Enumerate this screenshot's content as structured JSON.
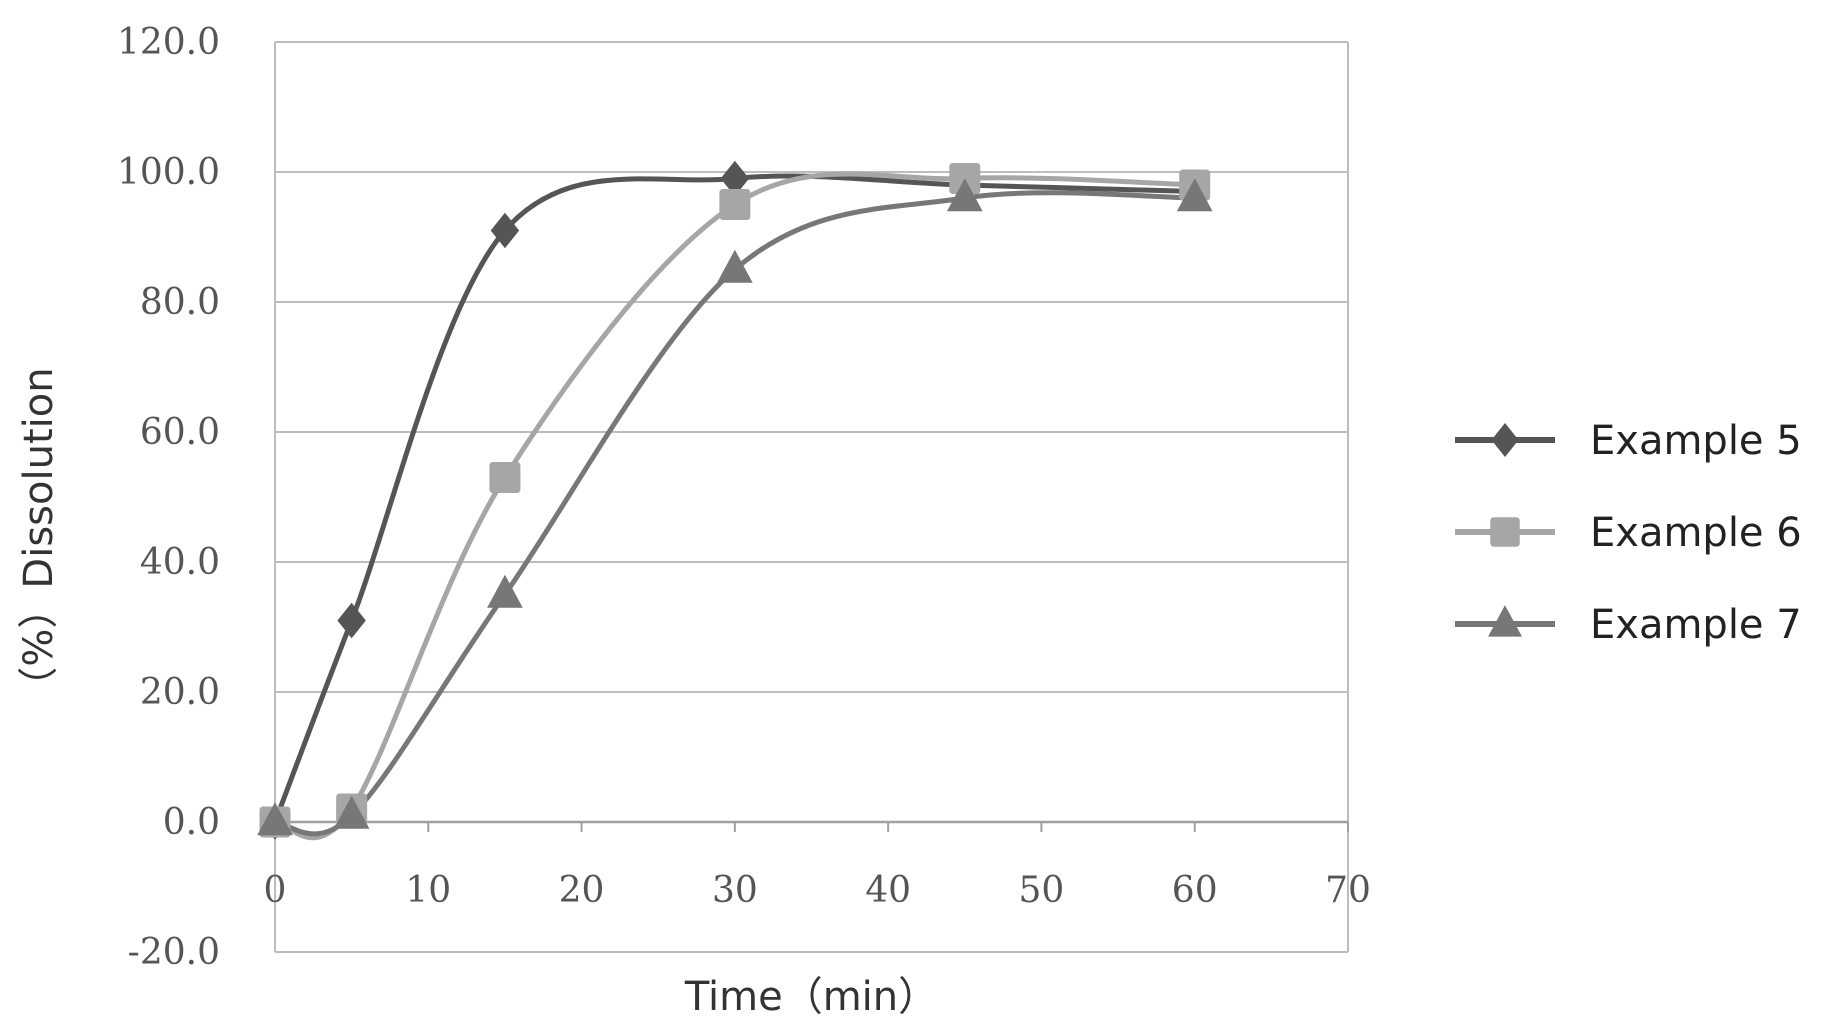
{
  "chart_data": {
    "type": "line",
    "xlabel": "Time（min）",
    "ylabel": "（%）Dissolution",
    "xlim": [
      0,
      70
    ],
    "ylim": [
      -20,
      120
    ],
    "xticks": [
      0,
      10,
      20,
      30,
      40,
      50,
      60,
      70
    ],
    "yticks": [
      -20,
      0,
      20,
      40,
      60,
      80,
      100,
      120
    ],
    "ytick_labels": [
      "-20.0",
      "0.0",
      "20.0",
      "40.0",
      "60.0",
      "80.0",
      "100.0",
      "120.0"
    ],
    "xtick_labels": [
      "0",
      "10",
      "20",
      "30",
      "40",
      "50",
      "60",
      "70"
    ],
    "grid": true,
    "legend": "right",
    "smooth": true,
    "series": [
      {
        "name": "Example 5",
        "marker": "diamond",
        "color": "#555555",
        "x": [
          0,
          5,
          15,
          30,
          45,
          60
        ],
        "y": [
          0.0,
          31.0,
          91.0,
          99.0,
          98.0,
          97.0
        ]
      },
      {
        "name": "Example 6",
        "marker": "square",
        "color": "#a6a6a6",
        "x": [
          0,
          5,
          15,
          30,
          45,
          60
        ],
        "y": [
          0.0,
          2.0,
          53.0,
          95.0,
          99.0,
          98.0
        ]
      },
      {
        "name": "Example 7",
        "marker": "triangle",
        "color": "#777777",
        "x": [
          0,
          5,
          15,
          30,
          45,
          60
        ],
        "y": [
          0.0,
          1.0,
          35.0,
          85.0,
          96.0,
          96.0
        ]
      }
    ]
  }
}
